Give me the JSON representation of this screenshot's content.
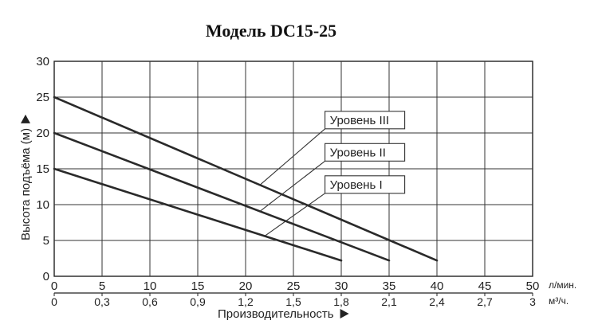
{
  "chart_data": {
    "type": "line",
    "title": "Модель DC15-25",
    "xlabel": "Производительность",
    "ylabel": "Высота подъёма (м)",
    "x_unit": "л/мин.",
    "x2_unit": "м³/ч.",
    "x": [
      0,
      5,
      10,
      15,
      20,
      25,
      30,
      35,
      40,
      45,
      50
    ],
    "x_ticks": [
      "0",
      "5",
      "10",
      "15",
      "20",
      "25",
      "30",
      "35",
      "40",
      "45",
      "50"
    ],
    "x2_ticks": [
      "0",
      "0,3",
      "0,6",
      "0,9",
      "1,2",
      "1,5",
      "1,8",
      "2,1",
      "2,4",
      "2,7",
      "3"
    ],
    "y_ticks": [
      "0",
      "5",
      "10",
      "15",
      "20",
      "25",
      "30"
    ],
    "xlim": [
      0,
      50
    ],
    "ylim": [
      0,
      30
    ],
    "grid": true,
    "series": [
      {
        "name": "Уровень I",
        "points": [
          [
            0,
            15
          ],
          [
            30,
            2.2
          ]
        ]
      },
      {
        "name": "Уровень II",
        "points": [
          [
            0,
            20
          ],
          [
            35,
            2.2
          ]
        ]
      },
      {
        "name": "Уровень III",
        "points": [
          [
            0,
            25
          ],
          [
            40,
            2.2
          ]
        ]
      }
    ],
    "callouts": [
      {
        "label": "Уровень III",
        "series": "Уровень III",
        "at_x": 21.5,
        "box_x": 28.3,
        "box_y": 21.8
      },
      {
        "label": "Уровень II",
        "series": "Уровень II",
        "at_x": 21.5,
        "box_x": 28.3,
        "box_y": 17.3
      },
      {
        "label": "Уровень I",
        "series": "Уровень I",
        "at_x": 22,
        "box_x": 28.3,
        "box_y": 12.8
      }
    ]
  }
}
